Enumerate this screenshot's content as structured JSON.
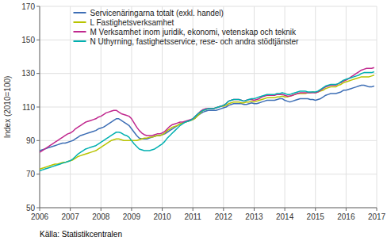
{
  "chart_data": {
    "type": "line",
    "y_label": "Index (2010=100)",
    "source": "Källa: Statistikcentralen",
    "xlim": [
      2006.0,
      2017.0
    ],
    "xticks": [
      2006,
      2007,
      2008,
      2009,
      2010,
      2011,
      2012,
      2013,
      2014,
      2015,
      2016,
      2017
    ],
    "ylim": [
      50,
      170
    ],
    "yticks": [
      50,
      70,
      90,
      110,
      130,
      150,
      170
    ],
    "grid": true,
    "legend": "upper left",
    "x": [
      2006,
      2006.0833333333,
      2006.1666666667,
      2006.25,
      2006.3333333333,
      2006.4166666667,
      2006.5,
      2006.5833333333,
      2006.6666666667,
      2006.75,
      2006.8333333333,
      2006.9166666667,
      2007,
      2007.0833333333,
      2007.1666666667,
      2007.25,
      2007.3333333333,
      2007.4166666667,
      2007.5,
      2007.5833333333,
      2007.6666666667,
      2007.75,
      2007.8333333333,
      2007.9166666667,
      2008,
      2008.0833333333,
      2008.1666666667,
      2008.25,
      2008.3333333333,
      2008.4166666667,
      2008.5,
      2008.5833333333,
      2008.6666666667,
      2008.75,
      2008.8333333333,
      2008.9166666667,
      2009,
      2009.0833333333,
      2009.1666666667,
      2009.25,
      2009.3333333333,
      2009.4166666667,
      2009.5,
      2009.5833333333,
      2009.6666666667,
      2009.75,
      2009.8333333333,
      2009.9166666667,
      2010,
      2010.0833333333,
      2010.1666666667,
      2010.25,
      2010.3333333333,
      2010.4166666667,
      2010.5,
      2010.5833333333,
      2010.6666666667,
      2010.75,
      2010.8333333333,
      2010.9166666667,
      2011,
      2011.0833333333,
      2011.1666666667,
      2011.25,
      2011.3333333333,
      2011.4166666667,
      2011.5,
      2011.5833333333,
      2011.6666666667,
      2011.75,
      2011.8333333333,
      2011.9166666667,
      2012,
      2012.0833333333,
      2012.1666666667,
      2012.25,
      2012.3333333333,
      2012.4166666667,
      2012.5,
      2012.5833333333,
      2012.6666666667,
      2012.75,
      2012.8333333333,
      2012.9166666667,
      2013,
      2013.0833333333,
      2013.1666666667,
      2013.25,
      2013.3333333333,
      2013.4166666667,
      2013.5,
      2013.5833333333,
      2013.6666666667,
      2013.75,
      2013.8333333333,
      2013.9166666667,
      2014,
      2014.0833333333,
      2014.1666666667,
      2014.25,
      2014.3333333333,
      2014.4166666667,
      2014.5,
      2014.5833333333,
      2014.6666666667,
      2014.75,
      2014.8333333333,
      2014.9166666667,
      2015,
      2015.0833333333,
      2015.1666666667,
      2015.25,
      2015.3333333333,
      2015.4166666667,
      2015.5,
      2015.5833333333,
      2015.6666666667,
      2015.75,
      2015.8333333333,
      2015.9166666667,
      2016,
      2016.0833333333,
      2016.1666666667,
      2016.25,
      2016.3333333333,
      2016.4166666667,
      2016.5,
      2016.5833333333,
      2016.6666666667,
      2016.75,
      2016.8333333333,
      2016.9166666667
    ],
    "series": [
      {
        "name": "Servicenäringarna totalt (exkl. handel)",
        "color": "#3d6eb5",
        "values": [
          84,
          84.5,
          85,
          85.5,
          86,
          86.5,
          87,
          87.5,
          88,
          88.5,
          88.5,
          89,
          89.5,
          90,
          91,
          92,
          93,
          93.5,
          94,
          94.5,
          95,
          95.5,
          96,
          97,
          97.5,
          98,
          99,
          100,
          101,
          102,
          103,
          103,
          102,
          101,
          100,
          99,
          97,
          95,
          93,
          91.5,
          91,
          91,
          91,
          91.5,
          92,
          92.5,
          93,
          93,
          93.5,
          94,
          95,
          96,
          97,
          98,
          99,
          100,
          100.5,
          101,
          101.5,
          102,
          102.5,
          103.5,
          105,
          106,
          107,
          107.5,
          108,
          108,
          108,
          108,
          108.5,
          109,
          109.5,
          110,
          111,
          111.5,
          112,
          112,
          112,
          112,
          111.5,
          111.5,
          112,
          112.5,
          112,
          112,
          112.5,
          113,
          113.5,
          114,
          114,
          114,
          114,
          114.5,
          115,
          115,
          114,
          113.5,
          113,
          113.5,
          114,
          114.5,
          115,
          115,
          115,
          115,
          114.5,
          114.5,
          114,
          114.5,
          115,
          116,
          117,
          117.5,
          118,
          118,
          118,
          118.5,
          119,
          120,
          120,
          120.5,
          121,
          121.5,
          122,
          122.5,
          123,
          123,
          122.5,
          122,
          122,
          122.5
        ]
      },
      {
        "name": "L Fastighetsverksamhet",
        "color": "#b8c400",
        "values": [
          73,
          73.5,
          74,
          74.5,
          75,
          75.5,
          76,
          76,
          76.5,
          77,
          77,
          77.5,
          78,
          78.5,
          79.5,
          80.5,
          81,
          81.5,
          82,
          82.5,
          83,
          83.5,
          84,
          85,
          86,
          87,
          88,
          89,
          90,
          90.5,
          91,
          91,
          90.5,
          90,
          90,
          90,
          90,
          90,
          90,
          90.5,
          91,
          91.5,
          91.5,
          92,
          92,
          92.5,
          93,
          93,
          93.5,
          94.5,
          96,
          97,
          98,
          98.5,
          99,
          100,
          100.5,
          101,
          101.5,
          102,
          102.5,
          103.5,
          105,
          106.5,
          108,
          108.5,
          109,
          109,
          109,
          109.5,
          110,
          110.5,
          110.5,
          111,
          112,
          112.5,
          113,
          113,
          113,
          112.5,
          112.5,
          113,
          113,
          113.5,
          113,
          113.5,
          114,
          114.5,
          115,
          115.5,
          115.5,
          115.5,
          115.5,
          116,
          116,
          116.5,
          116,
          116,
          116.5,
          117,
          117.5,
          118,
          118,
          118,
          118,
          118.5,
          118.5,
          119,
          118.5,
          119,
          119.5,
          120,
          121,
          121.5,
          122,
          122,
          122,
          123,
          123.5,
          124.5,
          125,
          125.5,
          126,
          126.5,
          127,
          127.5,
          128,
          128,
          128,
          128,
          128.5,
          129
        ]
      },
      {
        "name": "M Verksamhet inom juridik, ekonomi, vetenskap och teknik",
        "color": "#c0288e",
        "values": [
          83,
          84,
          85,
          86,
          87,
          88,
          89,
          90,
          91,
          92,
          93,
          94,
          94.5,
          95.5,
          97,
          98,
          99,
          100,
          101,
          101.5,
          102,
          102.5,
          103,
          104,
          104.5,
          105.5,
          106.5,
          107,
          107.5,
          108,
          108,
          107,
          106,
          105.5,
          105,
          104.5,
          103,
          100.5,
          98,
          96,
          94.5,
          93.5,
          93,
          93,
          93,
          93.5,
          94,
          94,
          94.5,
          95.5,
          97,
          98.5,
          99.5,
          100,
          100.5,
          101,
          101,
          101.5,
          102,
          102.5,
          103,
          104.5,
          106,
          107.5,
          108.5,
          109,
          109,
          109,
          109,
          109.5,
          110,
          110.5,
          111,
          112,
          113.5,
          114,
          114.5,
          114.5,
          114.5,
          114,
          113.5,
          114,
          114.5,
          114.5,
          114,
          114.5,
          115,
          116,
          116.5,
          117,
          117,
          117,
          117,
          117.5,
          117.5,
          117.5,
          117,
          116.5,
          116.5,
          117,
          117.5,
          118,
          118.5,
          118.5,
          118.5,
          118.5,
          118.5,
          118.5,
          118.5,
          119,
          120,
          121,
          122,
          122.5,
          123,
          123,
          123,
          124,
          124.5,
          125.5,
          126,
          127,
          128,
          129,
          130,
          131,
          132,
          132.5,
          133,
          133,
          133,
          133.5
        ]
      },
      {
        "name": "N Uthyrning, fastighetsservice, rese- och andra stödtjänster",
        "color": "#00b0b0",
        "values": [
          72,
          72.5,
          73,
          73.5,
          74,
          74.5,
          75,
          75.5,
          76,
          76.5,
          77,
          77.5,
          78,
          79,
          80.5,
          82,
          83,
          84,
          85,
          85.5,
          86,
          86.5,
          87,
          88,
          89,
          90,
          91,
          92,
          93,
          94,
          95,
          95,
          94.5,
          93.5,
          93,
          92,
          90,
          88,
          86.5,
          85,
          84.5,
          84,
          84,
          84,
          84.5,
          85,
          86,
          87,
          88,
          89.5,
          91.5,
          93,
          94.5,
          96,
          97.5,
          99,
          100,
          101,
          101.5,
          102,
          103,
          104.5,
          106,
          107,
          108,
          108.5,
          109,
          109,
          109,
          109.5,
          110,
          110.5,
          111,
          112,
          113.5,
          114,
          114.5,
          114.5,
          114.5,
          114,
          113.5,
          114,
          114.5,
          115,
          115,
          115.5,
          116,
          116.5,
          117,
          117.5,
          117.5,
          117.5,
          117.5,
          118,
          118,
          118.5,
          118,
          117.5,
          117.5,
          118,
          118.5,
          119,
          119.5,
          119.5,
          119.5,
          119,
          119,
          119,
          119,
          119.5,
          120.5,
          121.5,
          122.5,
          123,
          123.5,
          123.5,
          123.5,
          124,
          125,
          126,
          126.5,
          127,
          127.5,
          128,
          128.5,
          129,
          130,
          130.5,
          130.5,
          130.5,
          130.5,
          131
        ]
      }
    ]
  }
}
